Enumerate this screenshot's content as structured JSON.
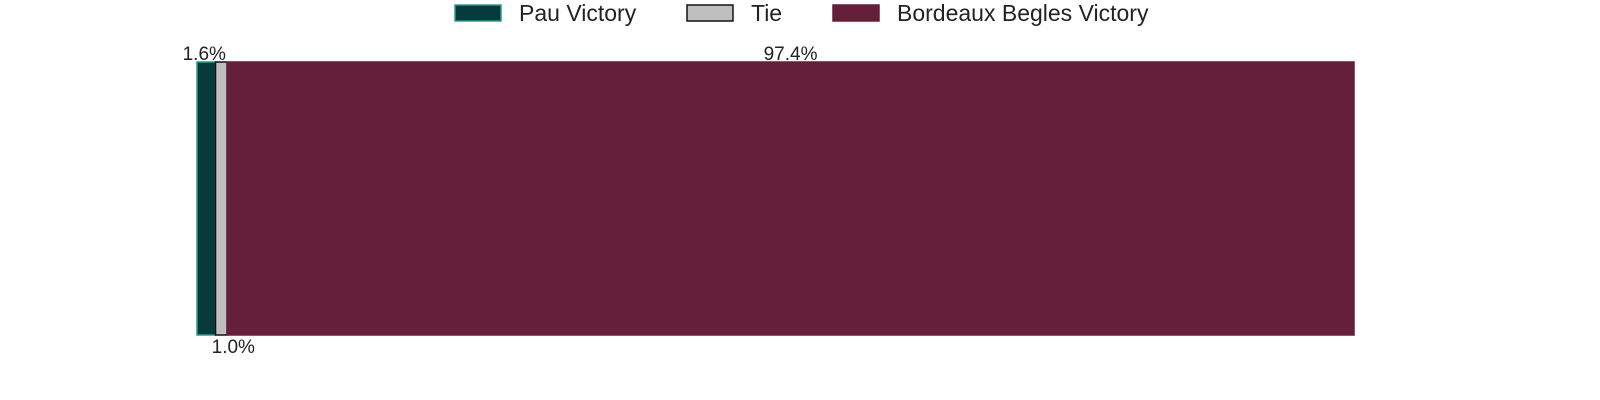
{
  "chart_data": {
    "type": "bar",
    "orientation": "horizontal-stacked",
    "categories": [
      ""
    ],
    "series": [
      {
        "name": "Pau Victory",
        "values": [
          1.6
        ],
        "color": "#06393a",
        "edge": "#2a9d8f",
        "label": "1.6%"
      },
      {
        "name": "Tie",
        "values": [
          1.0
        ],
        "color": "#bfbfbf",
        "edge": "#111111",
        "label": "1.0%"
      },
      {
        "name": "Bordeaux Begles Victory",
        "values": [
          97.4
        ],
        "color": "#661f39",
        "edge": "#661f39",
        "label": "97.4%"
      }
    ],
    "xlim": [
      0,
      100
    ],
    "grid": false,
    "legend_position": "top-center"
  }
}
